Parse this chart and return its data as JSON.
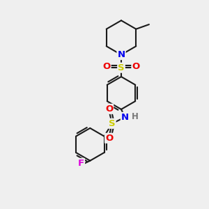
{
  "background_color": "#efefef",
  "atom_colors": {
    "C": "#1a1a1a",
    "N": "#0000ee",
    "O": "#ee0000",
    "S": "#cccc00",
    "F": "#dd00dd",
    "H": "#777777"
  },
  "bond_color": "#1a1a1a",
  "bond_width": 1.5,
  "font_size_atoms": 9.5,
  "figsize": [
    3.0,
    3.0
  ],
  "dpi": 100
}
